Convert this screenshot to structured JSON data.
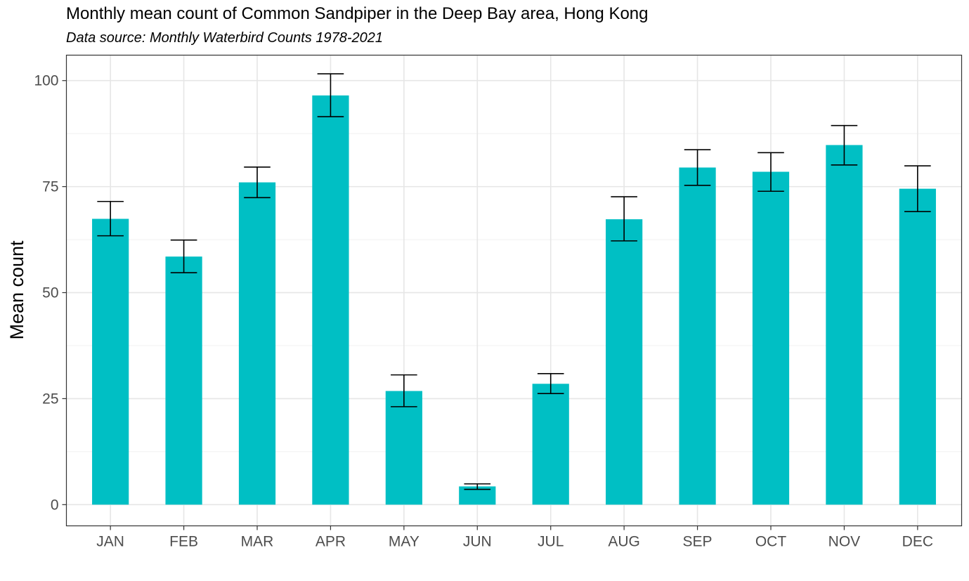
{
  "chart_data": {
    "type": "bar",
    "title": "Monthly mean count of Common Sandpiper in the Deep Bay area, Hong Kong",
    "subtitle": "Data source: Monthly Waterbird Counts 1978-2021",
    "xlabel": "",
    "ylabel": "Mean count",
    "categories": [
      "JAN",
      "FEB",
      "MAR",
      "APR",
      "MAY",
      "JUN",
      "JUL",
      "AUG",
      "SEP",
      "OCT",
      "NOV",
      "DEC"
    ],
    "values": [
      67.4,
      58.5,
      76.0,
      96.5,
      26.8,
      4.3,
      28.5,
      67.3,
      79.5,
      78.5,
      84.8,
      74.5
    ],
    "error_low": [
      63.4,
      54.7,
      72.4,
      91.5,
      23.1,
      3.6,
      26.2,
      62.2,
      75.3,
      73.9,
      80.1,
      69.1
    ],
    "error_high": [
      71.5,
      62.4,
      79.6,
      101.6,
      30.6,
      4.9,
      30.9,
      72.6,
      83.7,
      83.0,
      89.4,
      79.9
    ],
    "ylim": [
      -5,
      106
    ],
    "yticks": [
      "0",
      "25",
      "50",
      "75",
      "100"
    ],
    "grid": true,
    "bar_color": "#00BFC4",
    "error_bar_color": "#000000"
  }
}
